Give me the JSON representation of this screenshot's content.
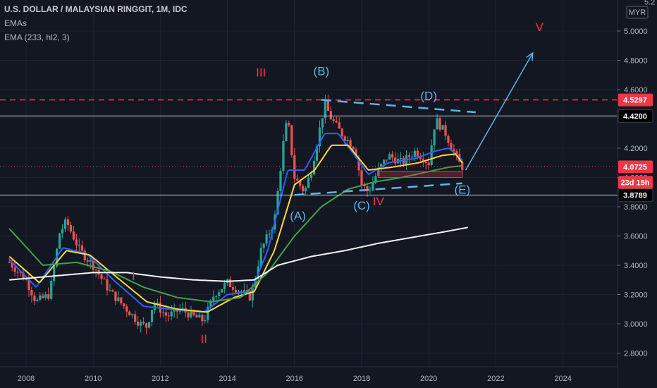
{
  "header": {
    "title": "U.S. DOLLAR / MALAYSIAN RINGGIT, 1M, IDC",
    "indicator1": "EMAs",
    "indicator2": "EMA (233, hl2, 3)"
  },
  "currency_badge": "MYR",
  "chart_data": {
    "type": "candlestick",
    "ylim": [
      2.7,
      5.2
    ],
    "xlim": [
      2007.5,
      2025.1
    ],
    "y_ticks": [
      "5.0000",
      "4.8000",
      "4.6000",
      "4.4000",
      "4.2000",
      "4.0000",
      "3.8000",
      "3.6000",
      "3.4000",
      "3.2000",
      "3.0000",
      "2.8000"
    ],
    "y_tick_values": [
      5.0,
      4.8,
      4.6,
      4.4,
      4.2,
      4.0,
      3.8,
      3.6,
      3.4,
      3.2,
      3.0,
      2.8
    ],
    "top_partial_tick": "5.2",
    "x_ticks": [
      "2008",
      "2010",
      "2012",
      "2014",
      "2016",
      "2018",
      "2020",
      "2022",
      "2024"
    ],
    "x_tick_values": [
      2008,
      2010,
      2012,
      2014,
      2016,
      2018,
      2020,
      2022,
      2024
    ],
    "close_keypoints": [
      [
        2007.5,
        3.42
      ],
      [
        2008.0,
        3.3
      ],
      [
        2008.3,
        3.15
      ],
      [
        2008.7,
        3.2
      ],
      [
        2009.0,
        3.62
      ],
      [
        2009.2,
        3.7
      ],
      [
        2009.6,
        3.5
      ],
      [
        2010.0,
        3.4
      ],
      [
        2010.5,
        3.22
      ],
      [
        2011.0,
        3.1
      ],
      [
        2011.4,
        3.0
      ],
      [
        2011.6,
        2.98
      ],
      [
        2011.8,
        3.15
      ],
      [
        2012.2,
        3.05
      ],
      [
        2012.6,
        3.1
      ],
      [
        2013.0,
        3.05
      ],
      [
        2013.3,
        3.02
      ],
      [
        2013.6,
        3.2
      ],
      [
        2014.0,
        3.28
      ],
      [
        2014.4,
        3.22
      ],
      [
        2014.7,
        3.18
      ],
      [
        2015.0,
        3.5
      ],
      [
        2015.4,
        3.7
      ],
      [
        2015.7,
        4.3
      ],
      [
        2015.8,
        4.4
      ],
      [
        2016.0,
        4.0
      ],
      [
        2016.3,
        3.9
      ],
      [
        2016.5,
        4.05
      ],
      [
        2016.9,
        4.5
      ],
      [
        2017.1,
        4.4
      ],
      [
        2017.4,
        4.3
      ],
      [
        2017.8,
        4.2
      ],
      [
        2018.0,
        3.95
      ],
      [
        2018.2,
        3.9
      ],
      [
        2018.5,
        4.05
      ],
      [
        2018.8,
        4.15
      ],
      [
        2019.2,
        4.1
      ],
      [
        2019.6,
        4.18
      ],
      [
        2020.0,
        4.1
      ],
      [
        2020.2,
        4.4
      ],
      [
        2020.5,
        4.3
      ],
      [
        2020.7,
        4.2
      ],
      [
        2020.9,
        4.1
      ],
      [
        2021.0,
        4.0725
      ]
    ],
    "series": [
      {
        "name": "EMA fast",
        "color": "#2962ff",
        "keypoints": [
          [
            2007.5,
            3.44
          ],
          [
            2008.3,
            3.25
          ],
          [
            2009.1,
            3.52
          ],
          [
            2009.8,
            3.48
          ],
          [
            2010.6,
            3.3
          ],
          [
            2011.5,
            3.12
          ],
          [
            2012.3,
            3.1
          ],
          [
            2013.3,
            3.08
          ],
          [
            2014.0,
            3.2
          ],
          [
            2014.7,
            3.22
          ],
          [
            2015.2,
            3.5
          ],
          [
            2015.8,
            4.05
          ],
          [
            2016.3,
            4.05
          ],
          [
            2016.9,
            4.3
          ],
          [
            2017.3,
            4.3
          ],
          [
            2017.8,
            4.15
          ],
          [
            2018.2,
            4.02
          ],
          [
            2018.8,
            4.1
          ],
          [
            2019.6,
            4.13
          ],
          [
            2020.2,
            4.18
          ],
          [
            2020.6,
            4.2
          ],
          [
            2021.0,
            4.12
          ]
        ]
      },
      {
        "name": "EMA mid",
        "color": "#fdd835",
        "keypoints": [
          [
            2007.5,
            3.46
          ],
          [
            2008.4,
            3.28
          ],
          [
            2009.2,
            3.5
          ],
          [
            2009.9,
            3.47
          ],
          [
            2010.8,
            3.3
          ],
          [
            2011.6,
            3.15
          ],
          [
            2012.5,
            3.1
          ],
          [
            2013.4,
            3.08
          ],
          [
            2014.2,
            3.18
          ],
          [
            2014.8,
            3.22
          ],
          [
            2015.4,
            3.5
          ],
          [
            2016.0,
            3.95
          ],
          [
            2016.6,
            4.05
          ],
          [
            2017.1,
            4.22
          ],
          [
            2017.6,
            4.22
          ],
          [
            2018.2,
            4.05
          ],
          [
            2018.9,
            4.07
          ],
          [
            2019.7,
            4.1
          ],
          [
            2020.4,
            4.15
          ],
          [
            2020.8,
            4.16
          ],
          [
            2021.0,
            4.1
          ]
        ]
      },
      {
        "name": "EMA slow",
        "color": "#43a047",
        "keypoints": [
          [
            2007.5,
            3.65
          ],
          [
            2008.5,
            3.4
          ],
          [
            2009.5,
            3.42
          ],
          [
            2010.5,
            3.36
          ],
          [
            2011.5,
            3.25
          ],
          [
            2012.5,
            3.18
          ],
          [
            2013.5,
            3.15
          ],
          [
            2014.4,
            3.18
          ],
          [
            2015.2,
            3.35
          ],
          [
            2016.0,
            3.6
          ],
          [
            2016.8,
            3.8
          ],
          [
            2017.6,
            3.92
          ],
          [
            2018.4,
            3.97
          ],
          [
            2019.2,
            4.0
          ],
          [
            2020.0,
            4.04
          ],
          [
            2020.6,
            4.07
          ],
          [
            2021.0,
            4.08
          ]
        ]
      },
      {
        "name": "EMA (233, hl2, 3)",
        "color": "#f5f5f5",
        "keypoints": [
          [
            2007.5,
            3.3
          ],
          [
            2009.0,
            3.33
          ],
          [
            2010.0,
            3.35
          ],
          [
            2011.0,
            3.35
          ],
          [
            2012.0,
            3.32
          ],
          [
            2013.0,
            3.3
          ],
          [
            2014.0,
            3.29
          ],
          [
            2014.8,
            3.3
          ],
          [
            2015.5,
            3.4
          ],
          [
            2016.5,
            3.46
          ],
          [
            2017.5,
            3.5
          ],
          [
            2018.5,
            3.55
          ],
          [
            2019.5,
            3.59
          ],
          [
            2020.5,
            3.63
          ],
          [
            2021.2,
            3.66
          ]
        ]
      }
    ],
    "annotations": {
      "waves": [
        {
          "text": "I",
          "x": 2011.2,
          "y": 3.3,
          "color": "#f23645"
        },
        {
          "text": "II",
          "x": 2013.3,
          "y": 2.87,
          "color": "#f23645"
        },
        {
          "text": "III",
          "x": 2015.0,
          "y": 4.69,
          "color": "#f23645"
        },
        {
          "text": "IV",
          "x": 2018.5,
          "y": 3.81,
          "color": "#f23645"
        },
        {
          "text": "V",
          "x": 2023.3,
          "y": 5.0,
          "color": "#f23645"
        },
        {
          "text": "(A)",
          "x": 2016.1,
          "y": 3.71,
          "color": "#5fb4e8"
        },
        {
          "text": "(B)",
          "x": 2016.8,
          "y": 4.7,
          "color": "#5fb4e8"
        },
        {
          "text": "(C)",
          "x": 2018.0,
          "y": 3.78,
          "color": "#5fb4e8"
        },
        {
          "text": "(D)",
          "x": 2020.0,
          "y": 4.53,
          "color": "#5fb4e8"
        },
        {
          "text": "(E)",
          "x": 2021.0,
          "y": 3.89,
          "color": "#5fb4e8"
        }
      ]
    },
    "price_tags": [
      {
        "value": 4.5297,
        "label": "4.5297",
        "bg": "#f23645",
        "fg": "#ffffff"
      },
      {
        "value": 4.42,
        "label": "4.4200",
        "bg": "#000000",
        "fg": "#ffffff"
      },
      {
        "value": 4.0725,
        "label": "4.0725",
        "bg": "#f23645",
        "fg": "#ffffff"
      },
      {
        "value": 3.8789,
        "label": "3.8789",
        "bg": "#000000",
        "fg": "#ffffff"
      }
    ],
    "countdown": "23d 15h",
    "colors": {
      "background": "#131722",
      "grid": "#1f2330",
      "up": "#26a69a",
      "down": "#ef5350",
      "red_line": "#f23645",
      "blue_annot": "#5fb4e8"
    }
  }
}
